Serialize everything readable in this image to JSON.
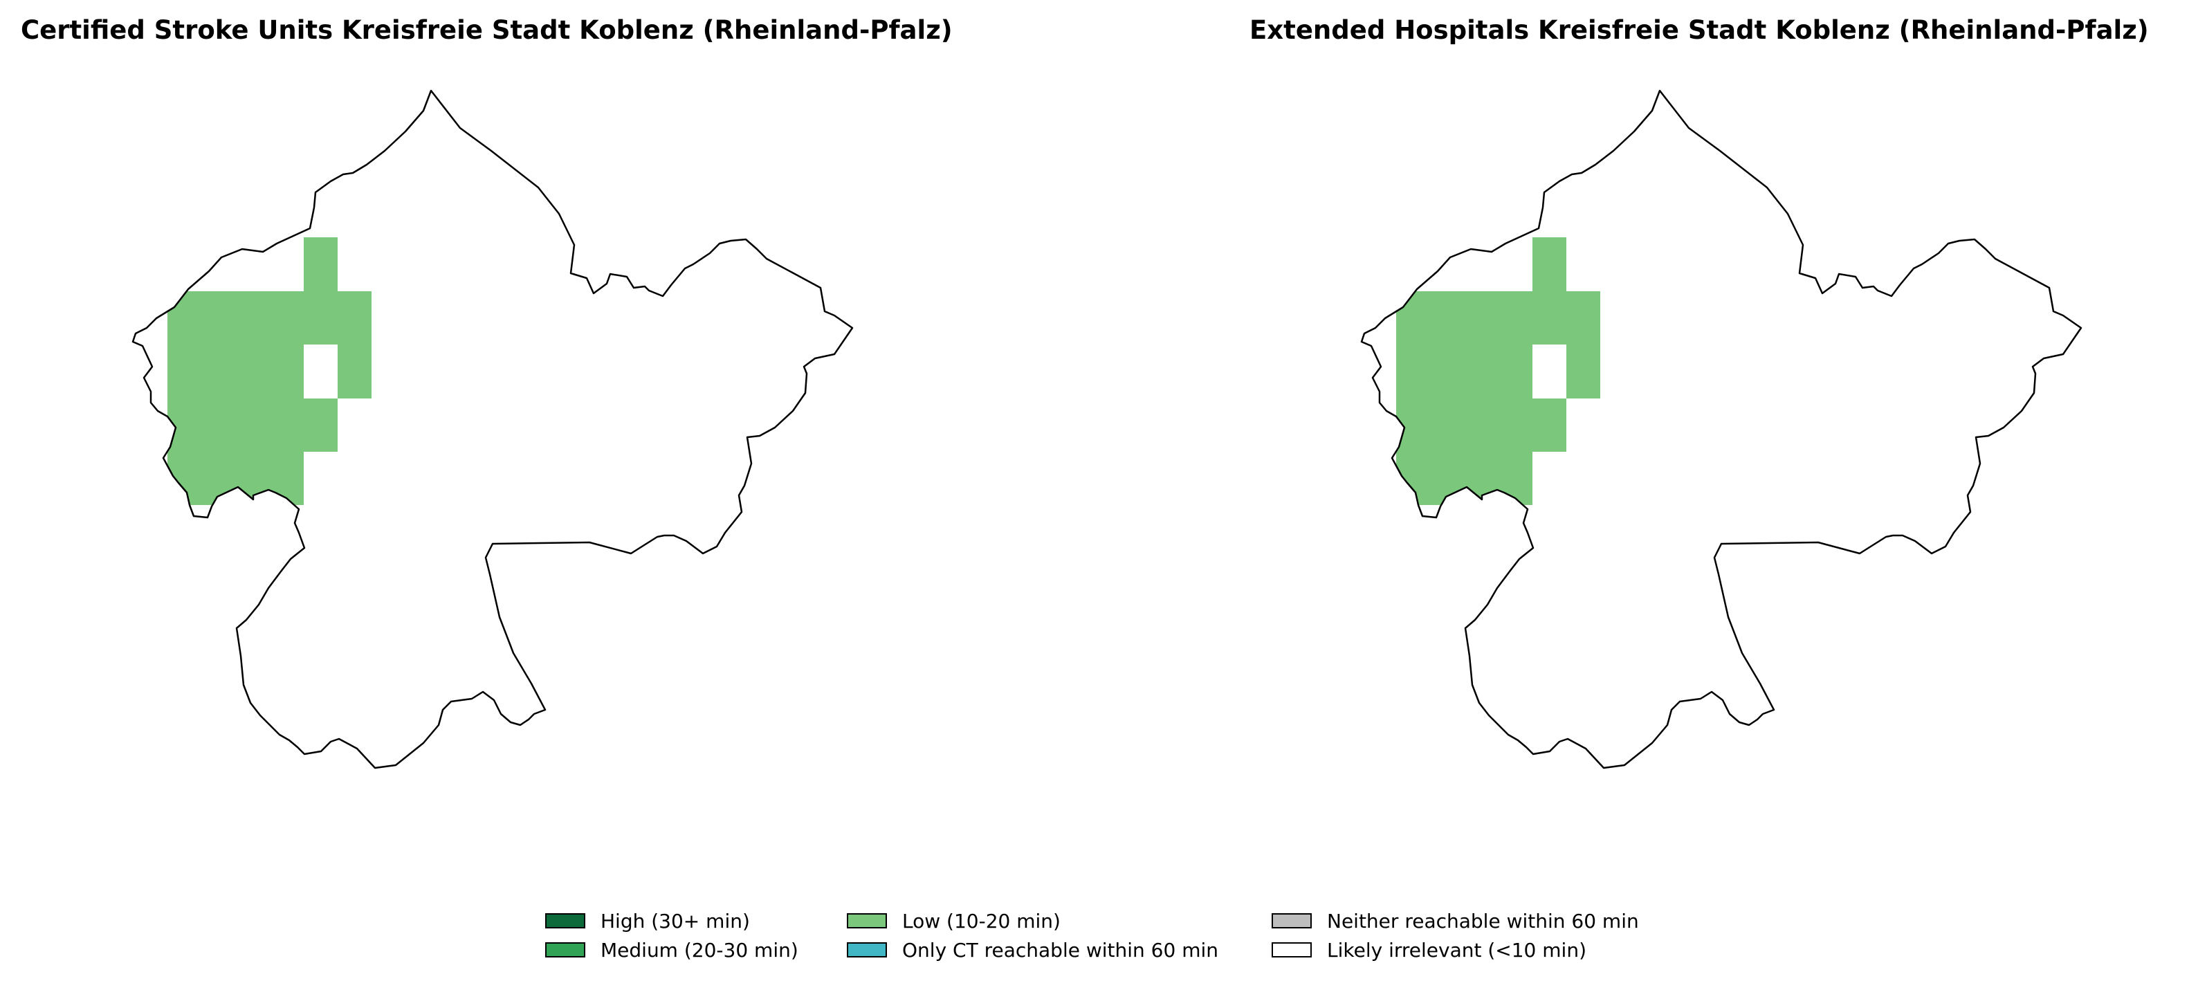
{
  "maps": [
    {
      "title": "Certified Stroke Units Kreisfreie Stadt Koblenz (Rheinland-Pfalz)",
      "highlighted_category": "Low (10-20 min)",
      "fill_color": "#7bc77c"
    },
    {
      "title": "Extended Hospitals Kreisfreie Stadt Koblenz (Rheinland-Pfalz)",
      "highlighted_category": "Low (10-20 min)",
      "fill_color": "#7bc77c"
    }
  ],
  "legend": [
    {
      "label": "High (30+ min)",
      "color": "#0d6b3b"
    },
    {
      "label": "Medium (20-30 min)",
      "color": "#31a354"
    },
    {
      "label": "Low (10-20 min)",
      "color": "#7bc77c"
    },
    {
      "label": "Only CT reachable within 60 min",
      "color": "#41b6c4"
    },
    {
      "label": "Neither reachable within 60 min",
      "color": "#bdbdbd"
    },
    {
      "label": "Likely irrelevant (<10 min)",
      "color": "#ffffff"
    }
  ]
}
